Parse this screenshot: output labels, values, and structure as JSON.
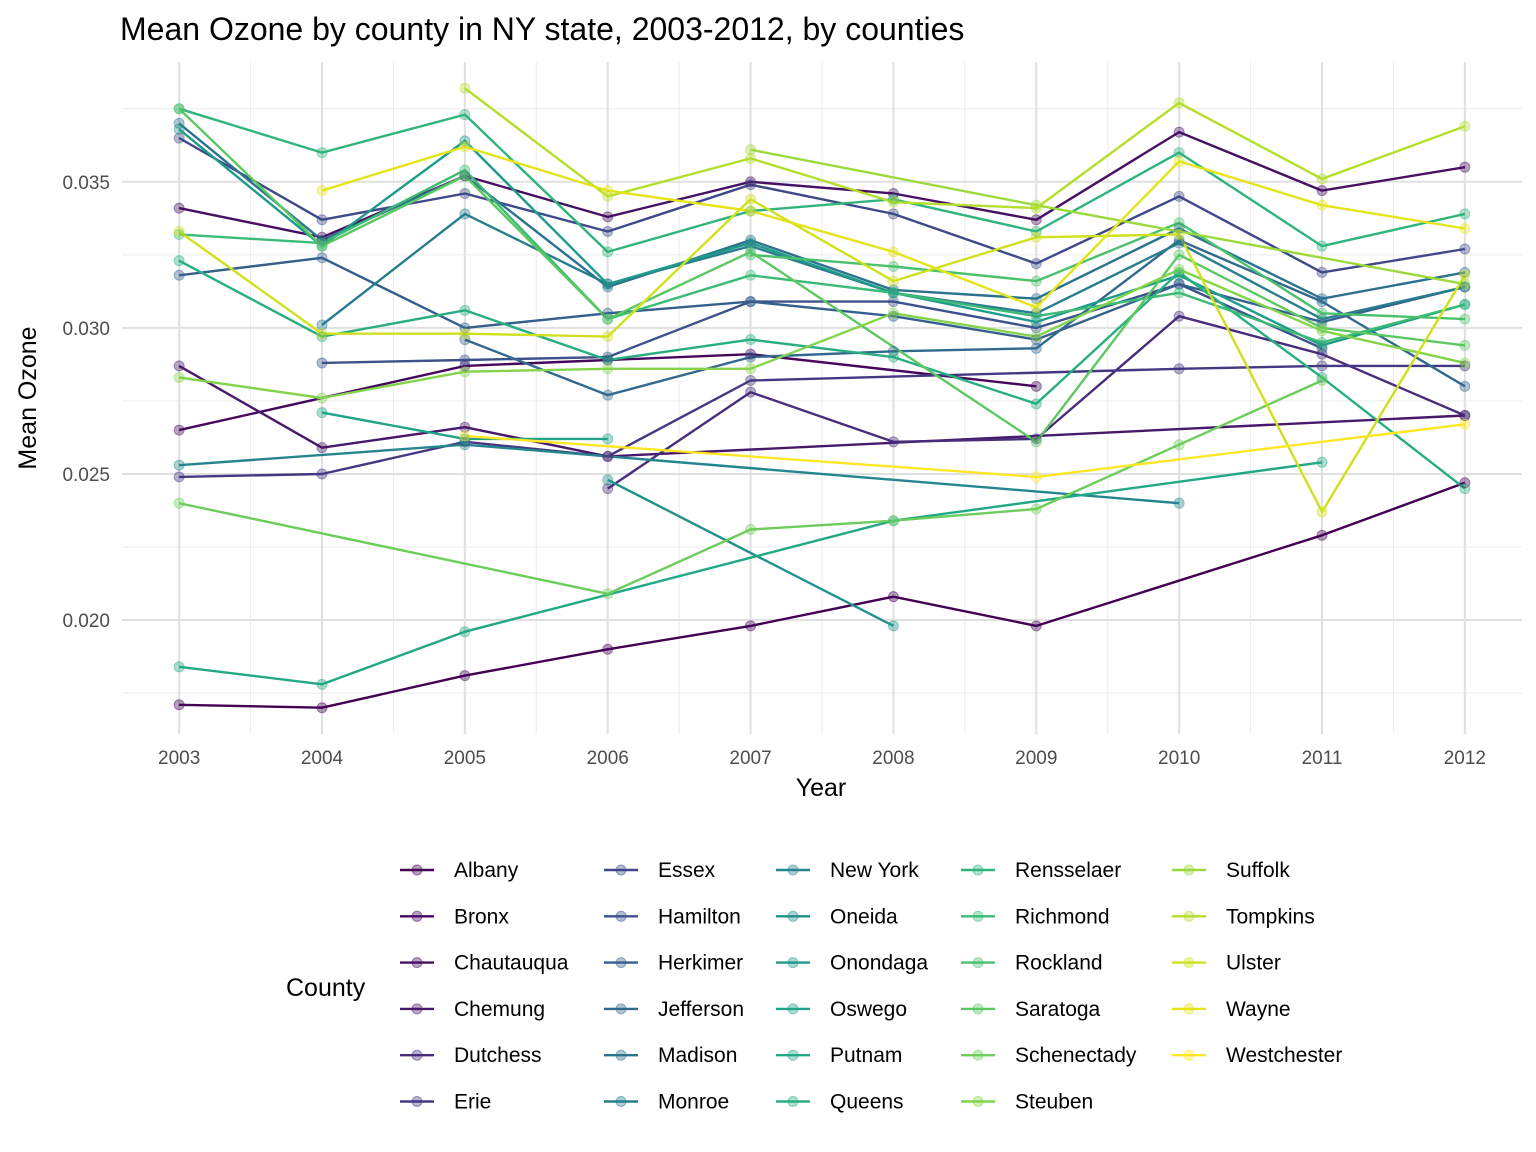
{
  "chart_data": {
    "type": "line",
    "title": "Mean Ozone by county in NY state, 2003-2012, by counties",
    "xlabel": "Year",
    "ylabel": "Mean Ozone",
    "legend_title": "County",
    "legend_position": "bottom",
    "grid": true,
    "xlim": [
      2002.6,
      2012.4
    ],
    "ylim": [
      0.0161,
      0.0391
    ],
    "x_ticks": [
      2003,
      2004,
      2005,
      2006,
      2007,
      2008,
      2009,
      2010,
      2011,
      2012
    ],
    "y_ticks": [
      0.02,
      0.025,
      0.03,
      0.035
    ],
    "y_tick_labels": [
      "0.020",
      "0.025",
      "0.030",
      "0.035"
    ],
    "series": [
      {
        "name": "Albany",
        "color": "#440154",
        "points": [
          [
            2003,
            0.0171
          ],
          [
            2004,
            0.017
          ],
          [
            2005,
            0.0181
          ],
          [
            2006,
            0.019
          ],
          [
            2007,
            0.0198
          ],
          [
            2008,
            0.0208
          ],
          [
            2009,
            0.0198
          ],
          [
            2011,
            0.0229
          ],
          [
            2012,
            0.0247
          ]
        ]
      },
      {
        "name": "Bronx",
        "color": "#46085C",
        "points": [
          [
            2003,
            0.0265
          ],
          [
            2005,
            0.0287
          ],
          [
            2006,
            0.0289
          ],
          [
            2007,
            0.0291
          ],
          [
            2009,
            0.028
          ]
        ]
      },
      {
        "name": "Chautauqua",
        "color": "#471063",
        "points": [
          [
            2003,
            0.0341
          ],
          [
            2004,
            0.0331
          ],
          [
            2005,
            0.0352
          ],
          [
            2006,
            0.0338
          ],
          [
            2007,
            0.035
          ],
          [
            2008,
            0.0346
          ],
          [
            2009,
            0.0337
          ],
          [
            2010,
            0.0367
          ],
          [
            2011,
            0.0347
          ],
          [
            2012,
            0.0355
          ]
        ]
      },
      {
        "name": "Chemung",
        "color": "#48186A",
        "points": [
          [
            2003,
            0.0287
          ],
          [
            2004,
            0.0259
          ],
          [
            2005,
            0.0266
          ],
          [
            2006,
            0.0256
          ],
          [
            2012,
            0.027
          ]
        ]
      },
      {
        "name": "Dutchess",
        "color": "#472D7B",
        "points": [
          [
            2006,
            0.0245
          ],
          [
            2007,
            0.0278
          ],
          [
            2008,
            0.0261
          ],
          [
            2009,
            0.0262
          ],
          [
            2010,
            0.0304
          ],
          [
            2011,
            0.0291
          ],
          [
            2012,
            0.027
          ]
        ]
      },
      {
        "name": "Erie",
        "color": "#453781",
        "points": [
          [
            2003,
            0.0249
          ],
          [
            2004,
            0.025
          ],
          [
            2005,
            0.0261
          ],
          [
            2006,
            0.0256
          ],
          [
            2007,
            0.0282
          ],
          [
            2010,
            0.0286
          ],
          [
            2011,
            0.0287
          ],
          [
            2012,
            0.0287
          ]
        ]
      },
      {
        "name": "Essex",
        "color": "#3E4989",
        "points": [
          [
            2003,
            0.0365
          ],
          [
            2004,
            0.0337
          ],
          [
            2005,
            0.0346
          ],
          [
            2006,
            0.0333
          ],
          [
            2007,
            0.0349
          ],
          [
            2008,
            0.0339
          ],
          [
            2009,
            0.0322
          ],
          [
            2010,
            0.0345
          ],
          [
            2011,
            0.0319
          ],
          [
            2012,
            0.0327
          ]
        ]
      },
      {
        "name": "Hamilton",
        "color": "#3B528B",
        "points": [
          [
            2004,
            0.0288
          ],
          [
            2005,
            0.0289
          ],
          [
            2006,
            0.029
          ],
          [
            2007,
            0.0309
          ],
          [
            2008,
            0.0309
          ],
          [
            2009,
            0.03
          ],
          [
            2010,
            0.0315
          ],
          [
            2011,
            0.0293
          ]
        ]
      },
      {
        "name": "Herkimer",
        "color": "#35608D",
        "points": [
          [
            2003,
            0.0318
          ],
          [
            2004,
            0.0324
          ],
          [
            2005,
            0.03
          ],
          [
            2006,
            0.0305
          ],
          [
            2007,
            0.0309
          ],
          [
            2008,
            0.0304
          ],
          [
            2009,
            0.0296
          ],
          [
            2010,
            0.0315
          ],
          [
            2011,
            0.0302
          ],
          [
            2012,
            0.0314
          ]
        ]
      },
      {
        "name": "Jefferson",
        "color": "#31688E",
        "points": [
          [
            2005,
            0.0296
          ],
          [
            2006,
            0.0277
          ],
          [
            2007,
            0.029
          ],
          [
            2008,
            0.0292
          ],
          [
            2009,
            0.0293
          ],
          [
            2010,
            0.033
          ],
          [
            2011,
            0.0309
          ],
          [
            2012,
            0.028
          ]
        ]
      },
      {
        "name": "Madison",
        "color": "#2C728E",
        "points": [
          [
            2003,
            0.037
          ],
          [
            2004,
            0.033
          ],
          [
            2005,
            0.0352
          ],
          [
            2006,
            0.0314
          ],
          [
            2007,
            0.033
          ],
          [
            2008,
            0.0313
          ],
          [
            2009,
            0.031
          ],
          [
            2010,
            0.0334
          ],
          [
            2011,
            0.031
          ],
          [
            2012,
            0.0319
          ]
        ]
      },
      {
        "name": "Monroe",
        "color": "#287D8E",
        "points": [
          [
            2004,
            0.0301
          ],
          [
            2005,
            0.0339
          ],
          [
            2006,
            0.0315
          ],
          [
            2007,
            0.0328
          ],
          [
            2008,
            0.0312
          ],
          [
            2009,
            0.0305
          ],
          [
            2010,
            0.0329
          ],
          [
            2011,
            0.0303
          ],
          [
            2012,
            0.0314
          ]
        ]
      },
      {
        "name": "New York",
        "color": "#25858E",
        "points": [
          [
            2003,
            0.0253
          ],
          [
            2005,
            0.026
          ],
          [
            2010,
            0.024
          ]
        ]
      },
      {
        "name": "Oneida",
        "color": "#21918C",
        "points": [
          [
            2006,
            0.0248
          ],
          [
            2008,
            0.0198
          ]
        ]
      },
      {
        "name": "Onondaga",
        "color": "#1E9B8A",
        "points": [
          [
            2003,
            0.0368
          ],
          [
            2004,
            0.0328
          ],
          [
            2005,
            0.0364
          ],
          [
            2006,
            0.0315
          ],
          [
            2007,
            0.0329
          ],
          [
            2008,
            0.0312
          ],
          [
            2009,
            0.0302
          ],
          [
            2010,
            0.0318
          ],
          [
            2011,
            0.0294
          ],
          [
            2012,
            0.0308
          ]
        ]
      },
      {
        "name": "Oswego",
        "color": "#20A386",
        "points": [
          [
            2004,
            0.0271
          ],
          [
            2005,
            0.0262
          ],
          [
            2006,
            0.0262
          ]
        ]
      },
      {
        "name": "Putnam",
        "color": "#22A884",
        "points": [
          [
            2003,
            0.0184
          ],
          [
            2004,
            0.0178
          ],
          [
            2005,
            0.0196
          ],
          [
            2008,
            0.0234
          ],
          [
            2011,
            0.0254
          ]
        ]
      },
      {
        "name": "Queens",
        "color": "#28AE80",
        "points": [
          [
            2003,
            0.0323
          ],
          [
            2004,
            0.0297
          ],
          [
            2005,
            0.0306
          ],
          [
            2006,
            0.0289
          ],
          [
            2007,
            0.0296
          ],
          [
            2008,
            0.029
          ],
          [
            2009,
            0.0274
          ],
          [
            2010,
            0.0319
          ],
          [
            2011,
            0.0283
          ],
          [
            2012,
            0.0245
          ]
        ]
      },
      {
        "name": "Rensselaer",
        "color": "#2FB47C",
        "points": [
          [
            2003,
            0.0375
          ],
          [
            2004,
            0.036
          ],
          [
            2005,
            0.0373
          ],
          [
            2006,
            0.0326
          ],
          [
            2007,
            0.034
          ],
          [
            2008,
            0.0344
          ],
          [
            2009,
            0.0333
          ],
          [
            2010,
            0.036
          ],
          [
            2011,
            0.0328
          ],
          [
            2012,
            0.0339
          ]
        ]
      },
      {
        "name": "Richmond",
        "color": "#3BBB75",
        "points": [
          [
            2003,
            0.0332
          ],
          [
            2004,
            0.0329
          ],
          [
            2005,
            0.0354
          ],
          [
            2006,
            0.0303
          ],
          [
            2007,
            0.0318
          ],
          [
            2008,
            0.0312
          ],
          [
            2009,
            0.0304
          ],
          [
            2010,
            0.0312
          ],
          [
            2011,
            0.0295
          ],
          [
            2012,
            0.0308
          ]
        ]
      },
      {
        "name": "Rockland",
        "color": "#4AC16D",
        "points": [
          [
            2007,
            0.0325
          ],
          [
            2008,
            0.0321
          ],
          [
            2009,
            0.0316
          ],
          [
            2010,
            0.0336
          ],
          [
            2011,
            0.0305
          ],
          [
            2012,
            0.0303
          ]
        ]
      },
      {
        "name": "Saratoga",
        "color": "#5DC863",
        "points": [
          [
            2003,
            0.0375
          ],
          [
            2004,
            0.0328
          ],
          [
            2005,
            0.0352
          ],
          [
            2006,
            0.0303
          ],
          [
            2007,
            0.0326
          ],
          [
            2009,
            0.0261
          ],
          [
            2010,
            0.0325
          ],
          [
            2011,
            0.03
          ],
          [
            2012,
            0.0294
          ]
        ]
      },
      {
        "name": "Schenectady",
        "color": "#6CCD5A",
        "points": [
          [
            2003,
            0.024
          ],
          [
            2006,
            0.0209
          ],
          [
            2007,
            0.0231
          ],
          [
            2008,
            0.0234
          ],
          [
            2009,
            0.0238
          ],
          [
            2010,
            0.026
          ],
          [
            2011,
            0.0282
          ]
        ]
      },
      {
        "name": "Steuben",
        "color": "#84D44B",
        "points": [
          [
            2003,
            0.0283
          ],
          [
            2004,
            0.0276
          ],
          [
            2005,
            0.0285
          ],
          [
            2006,
            0.0286
          ],
          [
            2007,
            0.0286
          ],
          [
            2008,
            0.0305
          ],
          [
            2009,
            0.0297
          ],
          [
            2010,
            0.032
          ],
          [
            2011,
            0.0299
          ],
          [
            2012,
            0.0288
          ]
        ]
      },
      {
        "name": "Suffolk",
        "color": "#9BD93C",
        "points": [
          [
            2007,
            0.0361
          ],
          [
            2009,
            0.0342
          ],
          [
            2012,
            0.0315
          ]
        ]
      },
      {
        "name": "Tompkins",
        "color": "#B5DE2B",
        "points": [
          [
            2005,
            0.0382
          ],
          [
            2006,
            0.0345
          ],
          [
            2007,
            0.0358
          ],
          [
            2008,
            0.0343
          ],
          [
            2009,
            0.0341
          ],
          [
            2010,
            0.0377
          ],
          [
            2011,
            0.0351
          ],
          [
            2012,
            0.0369
          ]
        ]
      },
      {
        "name": "Ulster",
        "color": "#CFE11C",
        "points": [
          [
            2003,
            0.0333
          ],
          [
            2004,
            0.0298
          ],
          [
            2005,
            0.0298
          ],
          [
            2006,
            0.0297
          ],
          [
            2007,
            0.0344
          ],
          [
            2008,
            0.0316
          ],
          [
            2009,
            0.0331
          ],
          [
            2010,
            0.0332
          ],
          [
            2011,
            0.0237
          ],
          [
            2012,
            0.0318
          ]
        ]
      },
      {
        "name": "Wayne",
        "color": "#E4E419",
        "points": [
          [
            2004,
            0.0347
          ],
          [
            2005,
            0.0362
          ],
          [
            2006,
            0.0347
          ],
          [
            2007,
            0.034
          ],
          [
            2008,
            0.0326
          ],
          [
            2009,
            0.0307
          ],
          [
            2010,
            0.0357
          ],
          [
            2011,
            0.0342
          ],
          [
            2012,
            0.0334
          ]
        ]
      },
      {
        "name": "Westchester",
        "color": "#FDE725",
        "points": [
          [
            2005,
            0.0263
          ],
          [
            2009,
            0.0249
          ],
          [
            2012,
            0.0267
          ]
        ]
      }
    ]
  }
}
